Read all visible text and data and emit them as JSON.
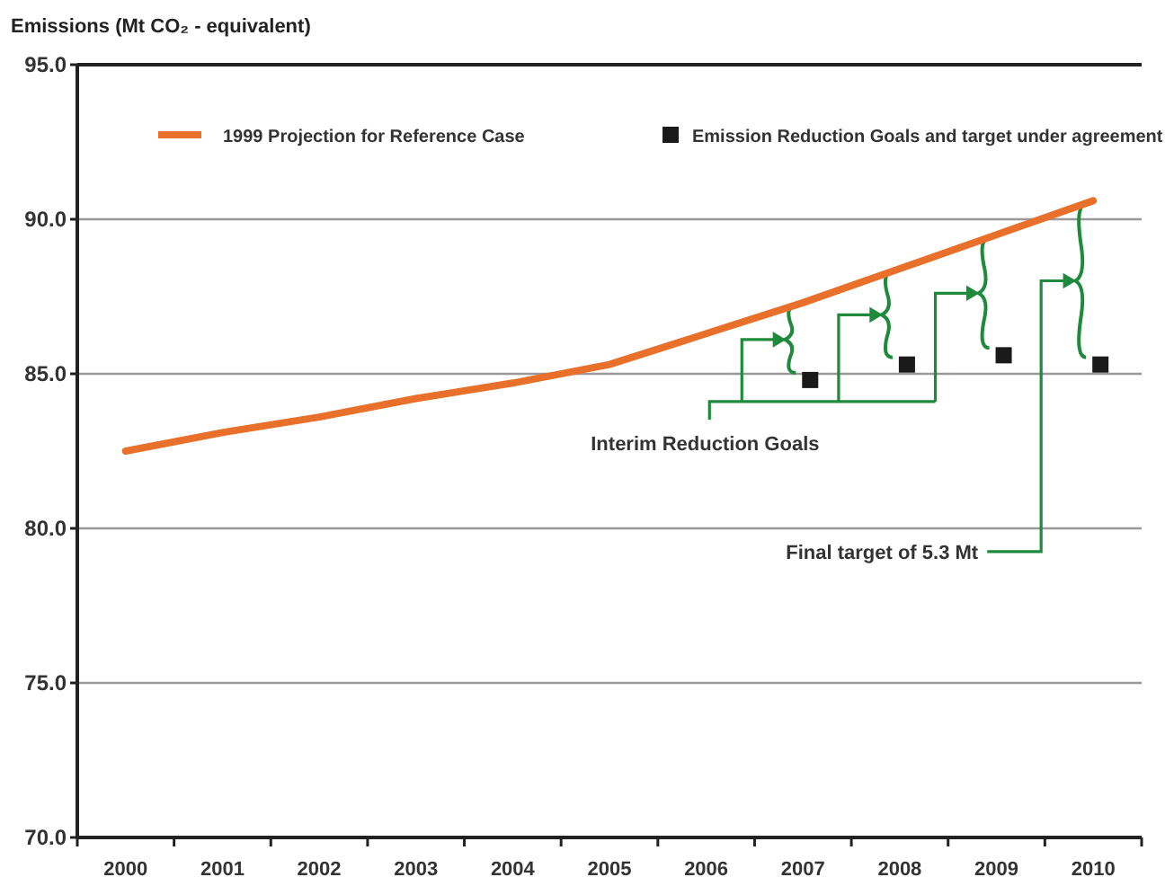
{
  "chart_data": {
    "type": "line",
    "ylabel": "Emissions (Mt CO₂ - equivalent)",
    "categories": [
      "2000",
      "2001",
      "2002",
      "2003",
      "2004",
      "2005",
      "2006",
      "2007",
      "2008",
      "2009",
      "2010"
    ],
    "series": [
      {
        "name": "1999 Projection for Reference Case",
        "color": "#e8702a",
        "values": [
          82.5,
          83.1,
          83.6,
          84.2,
          84.7,
          85.3,
          86.3,
          87.3,
          88.4,
          89.5,
          90.6
        ]
      },
      {
        "name": "Emission Reduction Goals and target under agreement",
        "type": "scatter",
        "marker": "square",
        "color": "#1a1a1a",
        "values": [
          null,
          null,
          null,
          null,
          null,
          null,
          null,
          84.8,
          85.3,
          85.6,
          85.3
        ]
      }
    ],
    "ylim": [
      70,
      95
    ],
    "yticks": [
      {
        "value": 70,
        "label": "70.0"
      },
      {
        "value": 75,
        "label": "75.0"
      },
      {
        "value": 80,
        "label": "80.0"
      },
      {
        "value": 85,
        "label": "85.0"
      },
      {
        "value": 90,
        "label": "90.0"
      },
      {
        "value": 95,
        "label": "95.0"
      }
    ],
    "grid": "y",
    "legend": "top",
    "annotations": [
      "Interim Reduction Goals",
      "Final target of 5.3 Mt"
    ]
  }
}
